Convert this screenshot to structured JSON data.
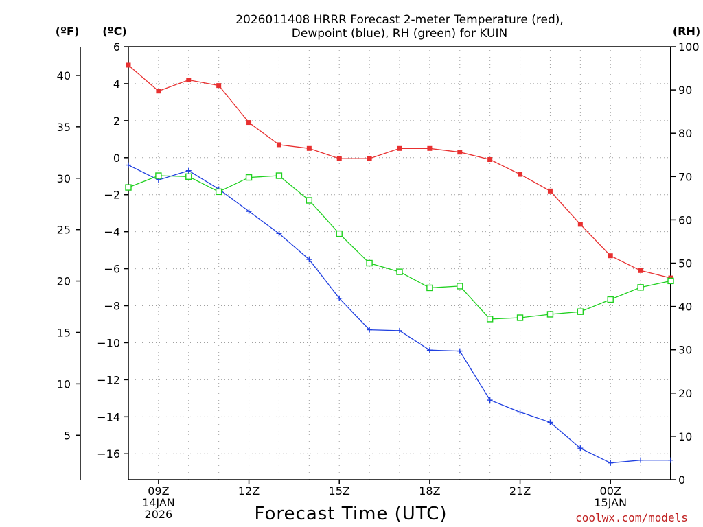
{
  "chart_data": {
    "type": "line",
    "title_line1": "2026011408 HRRR Forecast 2-meter Temperature (red),",
    "title_line2": "Dewpoint (blue), RH (green) for KUIN",
    "xlabel": "Forecast Time (UTC)",
    "units": {
      "fahrenheit": "(ºF)",
      "celsius": "(ºC)",
      "rh": "(RH)"
    },
    "x_hours": [
      8,
      9,
      10,
      11,
      12,
      13,
      14,
      15,
      16,
      17,
      18,
      19,
      20,
      21,
      22,
      23,
      24,
      25,
      26
    ],
    "xlim": [
      8,
      26
    ],
    "xticks": [
      {
        "hour": 9,
        "lines": [
          "09Z",
          "14JAN",
          "2026"
        ]
      },
      {
        "hour": 12,
        "lines": [
          "12Z"
        ]
      },
      {
        "hour": 15,
        "lines": [
          "15Z"
        ]
      },
      {
        "hour": 18,
        "lines": [
          "18Z"
        ]
      },
      {
        "hour": 21,
        "lines": [
          "21Z"
        ]
      },
      {
        "hour": 24,
        "lines": [
          "00Z",
          "15JAN"
        ]
      }
    ],
    "celsius_axis": {
      "ylim": [
        -17.4,
        6
      ],
      "ticks": [
        6,
        4,
        2,
        0,
        -2,
        -4,
        -6,
        -8,
        -10,
        -12,
        -14,
        -16
      ],
      "tick_labels": [
        "6",
        "4",
        "2",
        "0",
        "−2",
        "−4",
        "−6",
        "−8",
        "−10",
        "−12",
        "−14",
        "−16"
      ]
    },
    "fahrenheit_axis": {
      "ticks": [
        40,
        35,
        30,
        25,
        20,
        15,
        10,
        5
      ]
    },
    "rh_axis": {
      "ylim": [
        0,
        100
      ],
      "ticks": [
        100,
        90,
        80,
        70,
        60,
        50,
        40,
        30,
        20,
        10,
        0
      ]
    },
    "series": [
      {
        "name": "Temperature",
        "axis": "celsius",
        "color": "#e83030",
        "marker": "filled-square",
        "values": [
          5.0,
          3.6,
          4.2,
          3.9,
          1.9,
          0.7,
          0.5,
          -0.05,
          -0.05,
          0.5,
          0.5,
          0.3,
          -0.1,
          -0.9,
          -1.8,
          -3.6,
          -5.3,
          -6.1,
          -6.5
        ]
      },
      {
        "name": "Dewpoint",
        "axis": "celsius",
        "color": "#2040e0",
        "marker": "plus",
        "values": [
          -0.4,
          -1.2,
          -0.7,
          -1.7,
          -2.9,
          -4.1,
          -5.5,
          -7.6,
          -9.3,
          -9.35,
          -10.4,
          -10.45,
          -13.1,
          -13.75,
          -14.3,
          -15.7,
          -16.5,
          -16.35,
          -16.35
        ]
      },
      {
        "name": "RH",
        "axis": "rh",
        "color": "#20d020",
        "marker": "open-square",
        "values": [
          67.5,
          70.2,
          70.0,
          66.5,
          69.8,
          70.2,
          64.5,
          56.8,
          50.0,
          48.0,
          44.3,
          44.7,
          37.1,
          37.4,
          38.2,
          38.8,
          41.6,
          44.4,
          45.9
        ]
      }
    ]
  },
  "credit": "coolwx.com/models"
}
